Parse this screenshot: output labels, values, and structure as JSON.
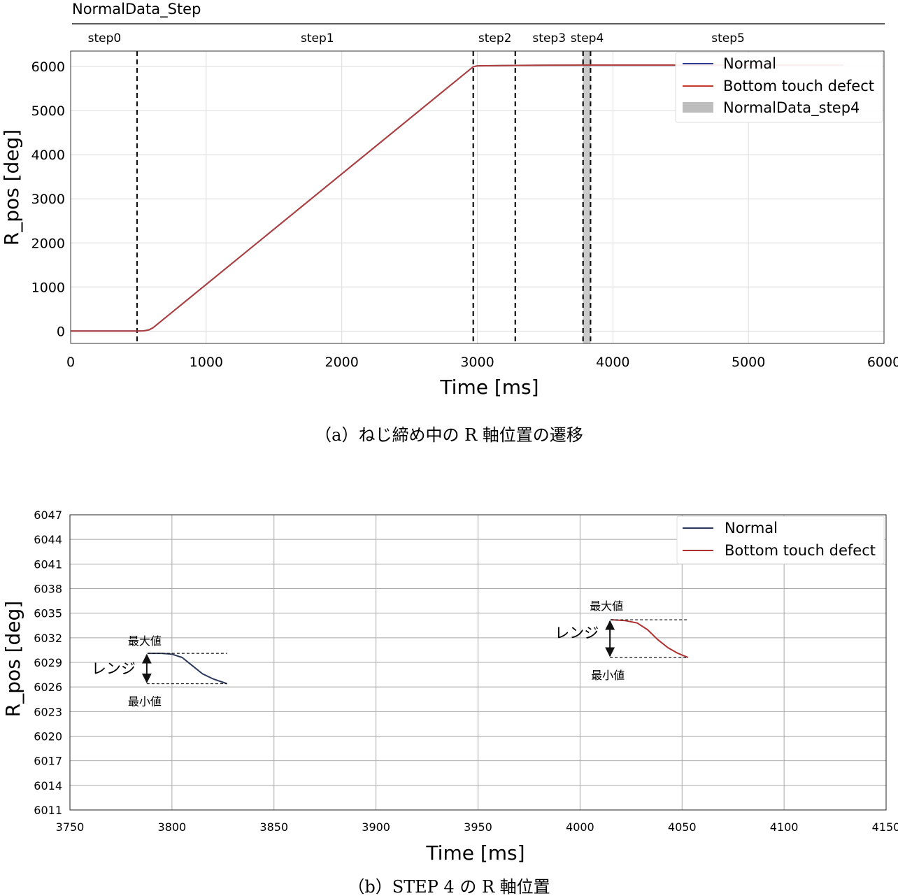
{
  "chart_data": [
    {
      "type": "line",
      "panel_title": "NormalData_Step",
      "xlabel": "Time [ms]",
      "ylabel": "R_pos [deg]",
      "xlim": [
        0,
        6000
      ],
      "ylim": [
        -280,
        6350
      ],
      "xticks": [
        0,
        1000,
        2000,
        3000,
        4000,
        5000,
        6000
      ],
      "yticks": [
        0,
        1000,
        2000,
        3000,
        4000,
        5000,
        6000
      ],
      "grid": true,
      "step_boundaries": [
        490,
        2970,
        3280,
        3780,
        3835
      ],
      "step_labels": [
        {
          "text": "step0",
          "x": 250
        },
        {
          "text": "step1",
          "x": 1820
        },
        {
          "text": "step2",
          "x": 3130
        },
        {
          "text": "step3",
          "x": 3530
        },
        {
          "text": "step4",
          "x": 3810
        },
        {
          "text": "step5",
          "x": 4850
        }
      ],
      "shaded_region": {
        "name": "NormalData_step4",
        "x0": 3780,
        "x1": 3835,
        "color": "#bdbdbd"
      },
      "series": [
        {
          "name": "Normal",
          "color": "#2b3a8c",
          "x": [
            0,
            490,
            540,
            580,
            610,
            2970,
            3000,
            3300,
            3500,
            3800,
            4200,
            5000,
            5700
          ],
          "y": [
            0,
            0,
            5,
            30,
            80,
            5995,
            6015,
            6025,
            6028,
            6030,
            6030,
            6030,
            6030
          ]
        },
        {
          "name": "Bottom touch defect",
          "color": "#c0392b",
          "x": [
            0,
            490,
            540,
            580,
            610,
            2970,
            3000,
            3300,
            3500,
            3800,
            4200,
            5000,
            5700
          ],
          "y": [
            0,
            0,
            5,
            30,
            80,
            5995,
            6015,
            6025,
            6028,
            6032,
            6032,
            6032,
            6032
          ]
        }
      ],
      "legend": {
        "position": "top-right",
        "entries": [
          "Normal",
          "Bottom touch defect",
          "NormalData_step4"
        ]
      },
      "caption": "（a）ねじ締め中の R 軸位置の遷移"
    },
    {
      "type": "line",
      "xlabel": "Time [ms]",
      "ylabel": "R_pos [deg]",
      "xlim": [
        3750,
        4150
      ],
      "ylim": [
        6011,
        6047
      ],
      "xticks": [
        3750,
        3800,
        3850,
        3900,
        3950,
        4000,
        4050,
        4100,
        4150
      ],
      "yticks": [
        6011,
        6014,
        6017,
        6020,
        6023,
        6026,
        6029,
        6032,
        6035,
        6038,
        6041,
        6044,
        6047
      ],
      "grid": true,
      "series": [
        {
          "name": "Normal",
          "color": "#2b3a5c",
          "x": [
            3788,
            3795,
            3800,
            3805,
            3810,
            3815,
            3820,
            3827
          ],
          "y": [
            6030.1,
            6030.1,
            6030.0,
            6029.6,
            6028.6,
            6027.6,
            6027.0,
            6026.4
          ]
        },
        {
          "name": "Bottom touch defect",
          "color": "#b03030",
          "x": [
            4015,
            4022,
            4028,
            4033,
            4038,
            4043,
            4048,
            4053
          ],
          "y": [
            6034.2,
            6034.1,
            6033.8,
            6033.0,
            6031.8,
            6030.8,
            6030.1,
            6029.6
          ]
        }
      ],
      "annotations": {
        "max_label": "最大値",
        "min_label": "最小値",
        "range_label": "レンジ"
      },
      "legend": {
        "position": "top-right",
        "entries": [
          "Normal",
          "Bottom touch defect"
        ]
      },
      "caption": "（b）STEP 4 の R 軸位置"
    }
  ]
}
